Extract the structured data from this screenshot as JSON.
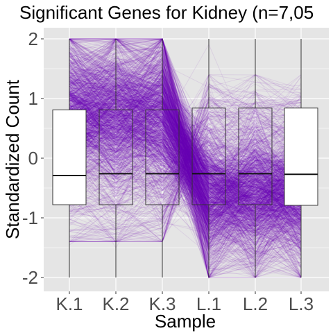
{
  "chart_data": {
    "type": "parallel-coordinates-boxplot",
    "title": "Significant Genes for Kidney (n=7,05",
    "xlabel": "Sample",
    "ylabel": "Standardized Count",
    "categories": [
      "K.1",
      "K.2",
      "K.3",
      "L.1",
      "L.2",
      "L.3"
    ],
    "yticks": [
      -2,
      -1,
      0,
      1,
      2
    ],
    "yticklabels": [
      "-2",
      "-1",
      "0",
      "1",
      "2"
    ],
    "ylim": [
      -2.2,
      2.1
    ],
    "grid": true,
    "boxes": [
      {
        "sample": "K.1",
        "whisker_low": -2.0,
        "q1": -0.78,
        "median": -0.29,
        "q3": 0.81,
        "whisker_high": 2.0
      },
      {
        "sample": "K.2",
        "whisker_low": -2.0,
        "q1": -0.78,
        "median": -0.26,
        "q3": 0.81,
        "whisker_high": 2.0
      },
      {
        "sample": "K.3",
        "whisker_low": -2.0,
        "q1": -0.78,
        "median": -0.26,
        "q3": 0.81,
        "whisker_high": 2.0
      },
      {
        "sample": "L.1",
        "whisker_low": -2.0,
        "q1": -0.78,
        "median": -0.26,
        "q3": 0.84,
        "whisker_high": 2.0
      },
      {
        "sample": "L.2",
        "whisker_low": -2.0,
        "q1": -0.78,
        "median": -0.26,
        "q3": 0.84,
        "whisker_high": 2.0
      },
      {
        "sample": "L.3",
        "whisker_low": -2.0,
        "q1": -0.79,
        "median": -0.27,
        "q3": 0.84,
        "whisker_high": 2.0
      }
    ],
    "line_color": "#6A00B5",
    "panel_background": "#E5E5E5",
    "grid_color": "#FFFFFF"
  }
}
